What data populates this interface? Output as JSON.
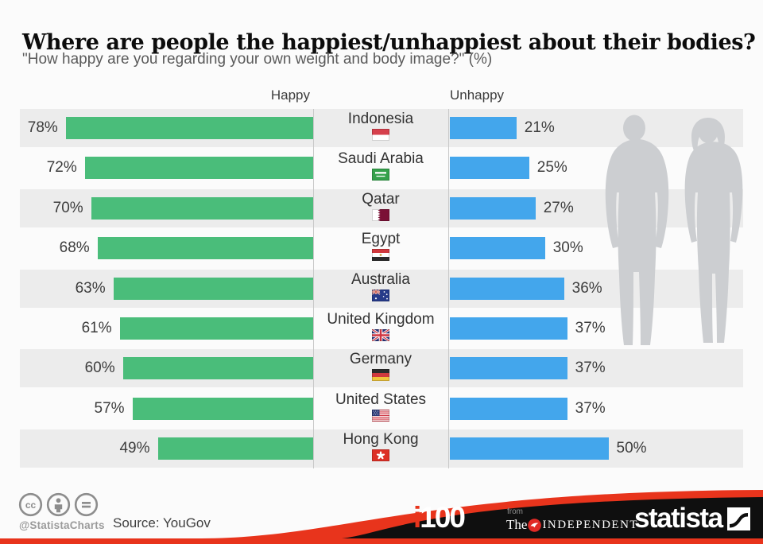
{
  "title": "Where are people the happiest/unhappiest about their bodies?",
  "subtitle": "\"How happy are you regarding your own weight and body image?\" (%)",
  "chart_data": {
    "type": "bar",
    "orientation": "diverging-horizontal",
    "left_header": "Happy",
    "right_header": "Unhappy",
    "value_suffix": "%",
    "axis_range": [
      0,
      100
    ],
    "categories": [
      "Indonesia",
      "Saudi Arabia",
      "Qatar",
      "Egypt",
      "Australia",
      "United Kingdom",
      "Germany",
      "United States",
      "Hong Kong"
    ],
    "flags": [
      "id",
      "sa",
      "qa",
      "eg",
      "au",
      "gb",
      "de",
      "us",
      "hk"
    ],
    "series": [
      {
        "name": "Happy",
        "side": "left",
        "color": "#4abd7a",
        "values": [
          78,
          72,
          70,
          68,
          63,
          61,
          60,
          57,
          49
        ]
      },
      {
        "name": "Unhappy",
        "side": "right",
        "color": "#43a6ec",
        "values": [
          21,
          25,
          27,
          30,
          36,
          37,
          37,
          37,
          50
        ]
      }
    ]
  },
  "footer": {
    "license_icons": [
      "cc-icon",
      "attribution-person-icon",
      "no-derivatives-icon"
    ],
    "handle": "@StatistaCharts",
    "source": "Source: YouGov",
    "i100_i": "i",
    "i100_rest": "100",
    "from_label": "from",
    "independent_the": "The",
    "independent_name": "INDEPENDENT",
    "statista_label": "statista"
  },
  "colors": {
    "happy_bar": "#4abd7a",
    "unhappy_bar": "#43a6ec",
    "row_stripe": "#ececec",
    "accent_red": "#e8341c",
    "footer_black": "#0f0f0f",
    "silhouette_gray": "#ccced1"
  }
}
